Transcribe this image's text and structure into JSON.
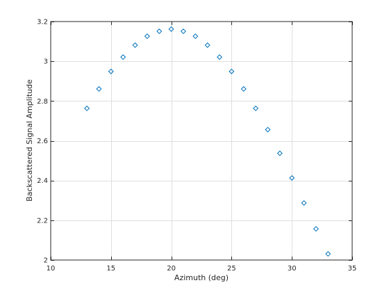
{
  "chart_data": {
    "type": "scatter",
    "xlabel": "Azimuth (deg)",
    "ylabel": "Backscattered Signal Amplitude",
    "xlim": [
      10,
      35
    ],
    "ylim": [
      2,
      3.2
    ],
    "xticks": [
      10,
      15,
      20,
      25,
      30,
      35
    ],
    "yticks": [
      2,
      2.2,
      2.4,
      2.6,
      2.8,
      3,
      3.2
    ],
    "xtick_labels": [
      "10",
      "15",
      "20",
      "25",
      "30",
      "35"
    ],
    "ytick_labels": [
      "2",
      "2.2",
      "2.4",
      "2.6",
      "2.8",
      "3",
      "3.2"
    ],
    "grid": true,
    "marker": "diamond",
    "marker_color": "#0072bd",
    "x": [
      13,
      14,
      15,
      16,
      17,
      18,
      19,
      20,
      21,
      22,
      23,
      24,
      25,
      26,
      27,
      28,
      29,
      30,
      31,
      32,
      33
    ],
    "y": [
      2.763,
      2.861,
      2.949,
      3.021,
      3.081,
      3.126,
      3.151,
      3.162,
      3.151,
      3.126,
      3.081,
      3.021,
      2.949,
      2.861,
      2.763,
      2.656,
      2.537,
      2.413,
      2.287,
      2.157,
      2.031
    ]
  }
}
